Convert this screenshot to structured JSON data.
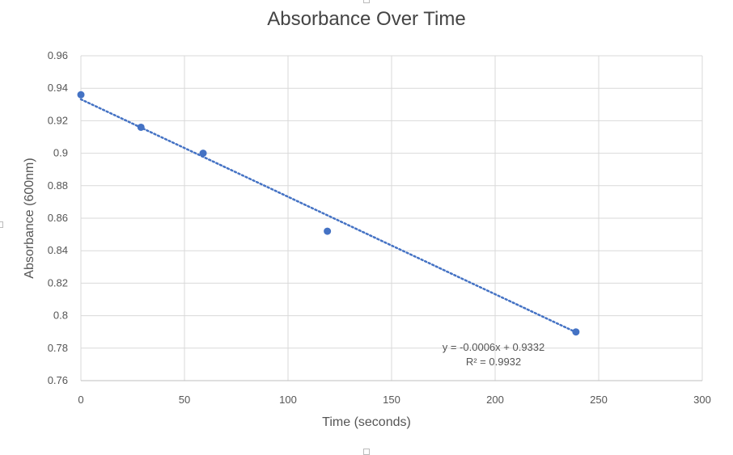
{
  "chart_data": {
    "type": "scatter",
    "title": "Absorbance Over Time",
    "xlabel": "Time (seconds)",
    "ylabel": "Absorbance (600nm)",
    "xlim": [
      0,
      300
    ],
    "ylim": [
      0.76,
      0.96
    ],
    "x_ticks": [
      "0",
      "50",
      "100",
      "150",
      "200",
      "250",
      "300"
    ],
    "y_ticks": [
      "0.76",
      "0.78",
      "0.8",
      "0.82",
      "0.84",
      "0.86",
      "0.88",
      "0.9",
      "0.92",
      "0.94",
      "0.96"
    ],
    "grid": true,
    "series": [
      {
        "x": [
          0,
          29,
          59,
          119,
          239
        ],
        "y": [
          0.936,
          0.916,
          0.9,
          0.852,
          0.79
        ],
        "color": "#4472c4"
      }
    ],
    "trendline": {
      "type": "linear",
      "slope": -0.0006,
      "intercept": 0.9332,
      "x_range": [
        0,
        239
      ],
      "color": "#4472c4",
      "style": "dotted",
      "equation": "y = -0.0006x + 0.9332",
      "r_squared": "R² = 0.9932"
    }
  }
}
